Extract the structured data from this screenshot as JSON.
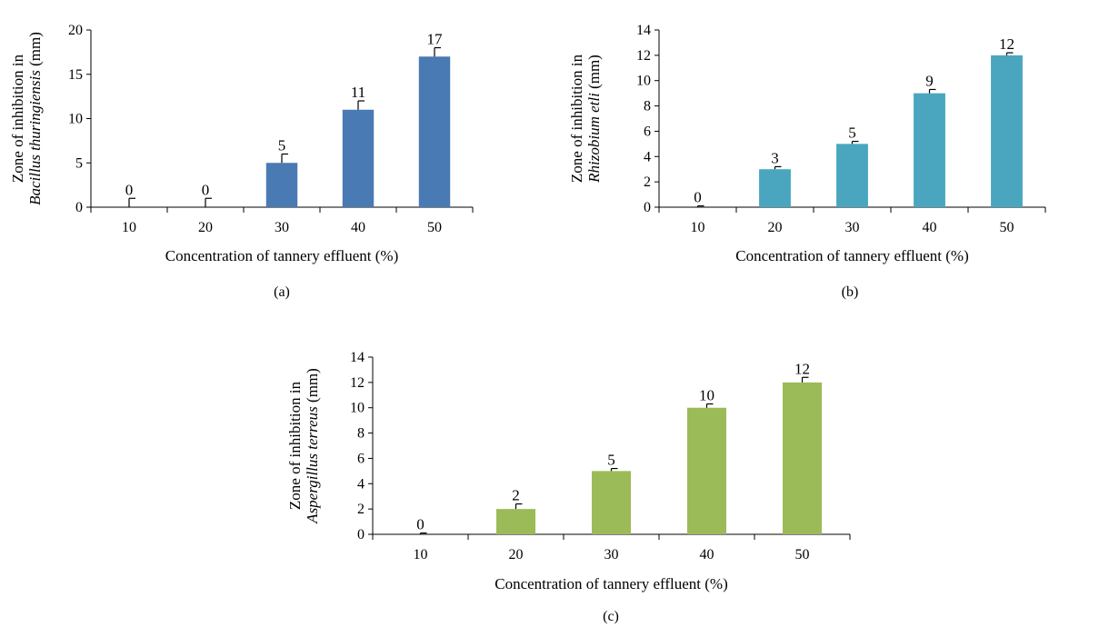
{
  "chart_data": [
    {
      "type": "bar",
      "panel_label": "(a)",
      "categories": [
        "10",
        "20",
        "30",
        "40",
        "50"
      ],
      "values": [
        0,
        0,
        5,
        11,
        17
      ],
      "errors": [
        1.0,
        1.0,
        1.0,
        1.0,
        1.0
      ],
      "data_labels": [
        "0",
        "0",
        "5",
        "11",
        "17"
      ],
      "ylabel_plain": "Zone of inhibition in",
      "ylabel_italic": "Bacillus thuringiensis",
      "ylabel_unit": " (mm)",
      "xlabel": "Concentration of tannery effluent (%)",
      "ylim": [
        0,
        20
      ],
      "yticks": [
        0,
        5,
        10,
        15,
        20
      ],
      "color": "#4a7ab3",
      "grid": false,
      "legend": "none"
    },
    {
      "type": "bar",
      "panel_label": "(b)",
      "categories": [
        "10",
        "20",
        "30",
        "40",
        "50"
      ],
      "values": [
        0,
        3,
        5,
        9,
        12
      ],
      "errors": [
        0.1,
        0.2,
        0.2,
        0.3,
        0.2
      ],
      "data_labels": [
        "0",
        "3",
        "5",
        "9",
        "12"
      ],
      "ylabel_plain": "Zone of inhibition in",
      "ylabel_italic": "Rhizobium etli",
      "ylabel_unit": " (mm)",
      "xlabel": "Concentration of tannery effluent (%)",
      "ylim": [
        0,
        14
      ],
      "yticks": [
        0,
        2,
        4,
        6,
        8,
        10,
        12,
        14
      ],
      "color": "#4aa6bf",
      "grid": false,
      "legend": "none"
    },
    {
      "type": "bar",
      "panel_label": "(c)",
      "categories": [
        "10",
        "20",
        "30",
        "40",
        "50"
      ],
      "values": [
        0,
        2,
        5,
        10,
        12
      ],
      "errors": [
        0.1,
        0.4,
        0.2,
        0.3,
        0.4
      ],
      "data_labels": [
        "0",
        "2",
        "5",
        "10",
        "12"
      ],
      "ylabel_plain": "Zone of inhibition in",
      "ylabel_italic": "Aspergillus terreus",
      "ylabel_unit": " (mm)",
      "xlabel": "Concentration of tannery effluent (%)",
      "ylim": [
        0,
        14
      ],
      "yticks": [
        0,
        2,
        4,
        6,
        8,
        10,
        12,
        14
      ],
      "color": "#9bbb59",
      "grid": false,
      "legend": "none"
    }
  ]
}
